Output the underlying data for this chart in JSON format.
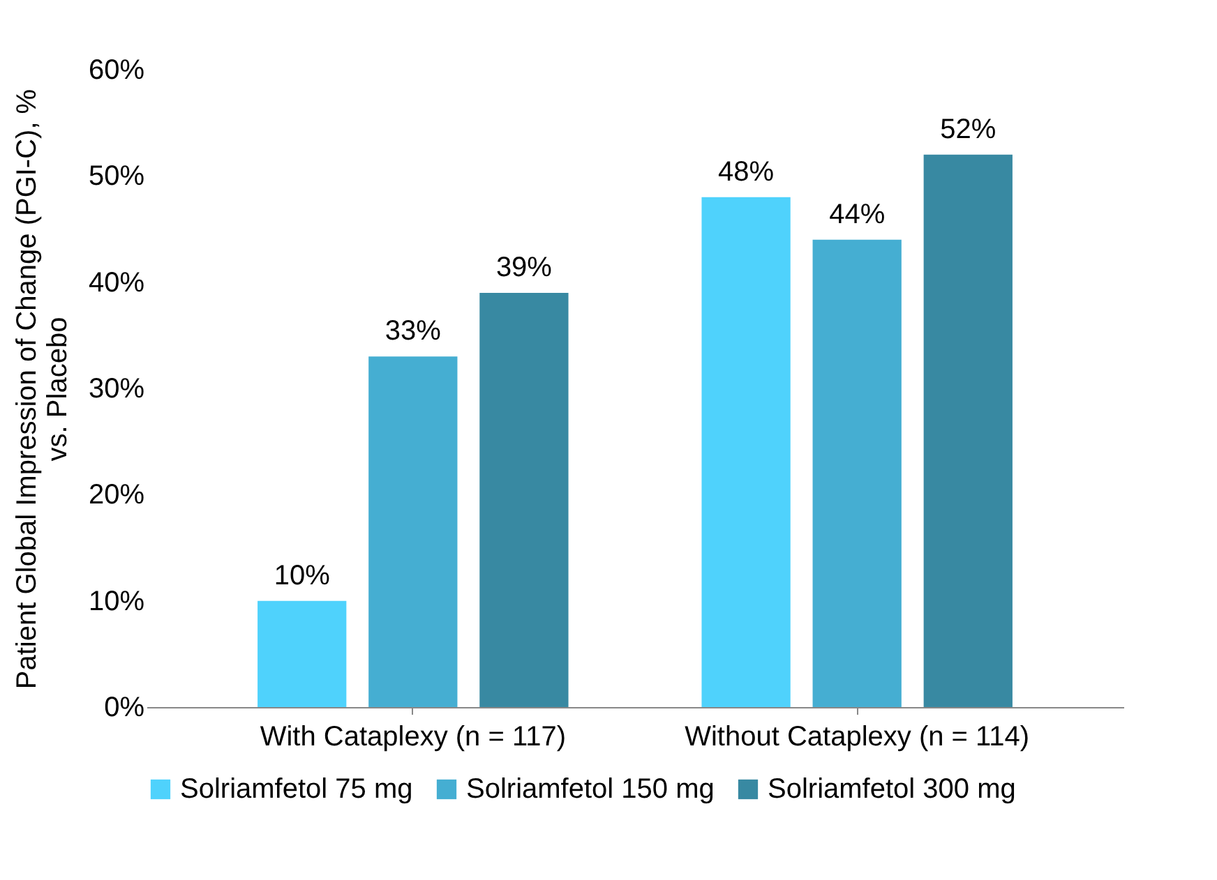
{
  "chart_data": {
    "type": "bar",
    "ylabel": "Patient Global Impression of Change (PGI-C), %\nvs. Placebo",
    "categories": [
      "With Cataplexy (n = 117)",
      "Without Cataplexy (n = 114)"
    ],
    "series": [
      {
        "name": "Solriamfetol 75 mg",
        "color": "#4fd2fc",
        "values": [
          10,
          48
        ],
        "value_labels": [
          "10%",
          "48%"
        ]
      },
      {
        "name": "Solriamfetol 150 mg",
        "color": "#45aed2",
        "values": [
          33,
          44
        ],
        "value_labels": [
          "33%",
          "44%"
        ]
      },
      {
        "name": "Solriamfetol 300 mg",
        "color": "#3889a2",
        "values": [
          39,
          52
        ],
        "value_labels": [
          "39%",
          "52%"
        ]
      }
    ],
    "ylim": [
      0,
      60
    ],
    "yticks": [
      {
        "value": 0,
        "label": "0%"
      },
      {
        "value": 10,
        "label": "10%"
      },
      {
        "value": 20,
        "label": "20%"
      },
      {
        "value": 30,
        "label": "30%"
      },
      {
        "value": 40,
        "label": "40%"
      },
      {
        "value": 50,
        "label": "50%"
      },
      {
        "value": 60,
        "label": "60%"
      }
    ],
    "grid": false,
    "legend": "bottom"
  }
}
